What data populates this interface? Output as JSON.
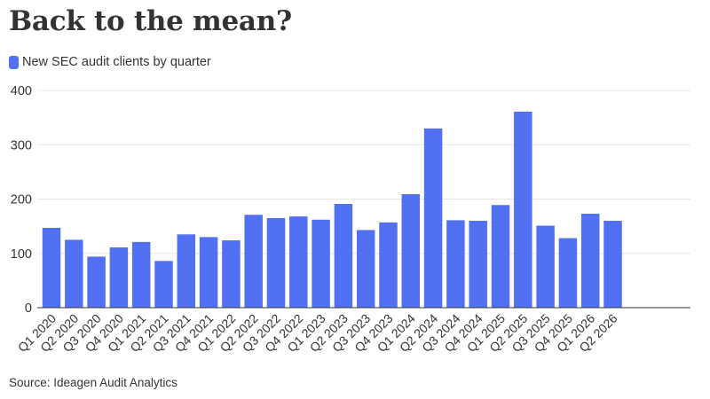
{
  "title": "Back to the mean?",
  "source": "Source: Ideagen Audit Analytics",
  "colors": {
    "bar": "#5271f2",
    "grid": "#e6e6e6",
    "axis": "#333333",
    "text": "#333333"
  },
  "chart_data": {
    "type": "bar",
    "title": "Back to the mean?",
    "legend_position": "top-left",
    "grid": true,
    "ylim": [
      0,
      400
    ],
    "yticks": [
      0,
      100,
      200,
      300,
      400
    ],
    "series": [
      {
        "name": "New SEC audit clients by quarter",
        "color": "#5271f2",
        "values": [
          147,
          125,
          94,
          111,
          121,
          86,
          135,
          130,
          124,
          171,
          165,
          168,
          162,
          191,
          143,
          157,
          209,
          330,
          161,
          160,
          189,
          361,
          151,
          128,
          173,
          160
        ]
      }
    ],
    "categories": [
      "Q1 2020",
      "Q2 2020",
      "Q3 2020",
      "Q4 2020",
      "Q1 2021",
      "Q2 2021",
      "Q3 2021",
      "Q4 2021",
      "Q1 2022",
      "Q2 2022",
      "Q3 2022",
      "Q4 2022",
      "Q1 2023",
      "Q2 2023",
      "Q3 2023",
      "Q4 2023",
      "Q1 2024",
      "Q2 2024",
      "Q3 2024",
      "Q4 2024",
      "Q1 2025",
      "Q2 2025",
      "Q3 2025",
      "Q4 2025",
      "Q1 2026",
      "Q2 2026"
    ]
  }
}
